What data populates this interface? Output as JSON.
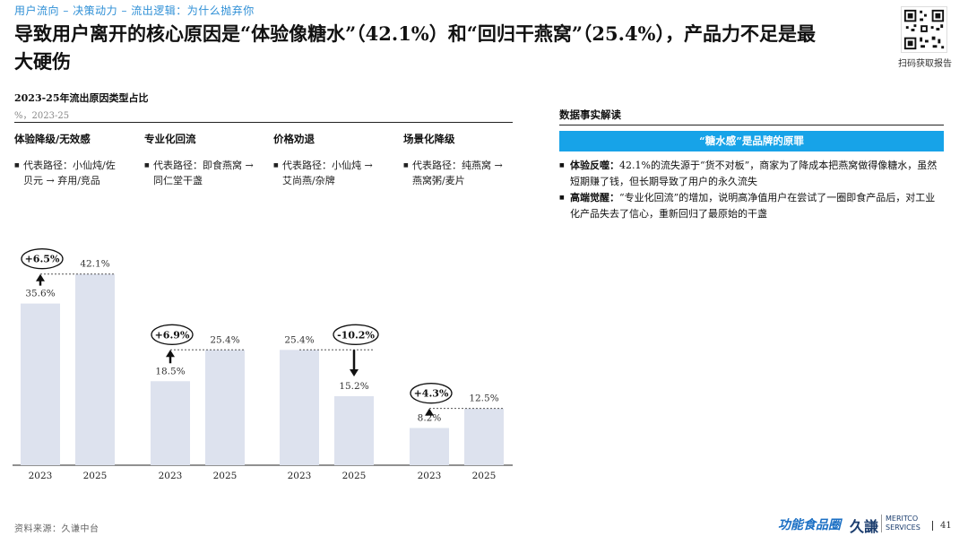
{
  "breadcrumb": "用户流向 – 决策动力 – 流出逻辑：为什么抛弃你",
  "headline": "导致用户离开的核心原因是“体验像糖水”（42.1%）和“回归干燕窝”（25.4%），产品力不足是最大硬伤",
  "qr_caption": "扫码获取报告",
  "chart_data": {
    "type": "bar",
    "title": "2023-25年流出原因类型占比",
    "subtitle": "%，2023-25",
    "groups": [
      {
        "name": "体验降级/无效感",
        "desc": "代表路径：小仙炖/佐贝元 → 弃用/竞品",
        "x": [
          "2023",
          "2025"
        ],
        "values": [
          35.6,
          42.1
        ],
        "change": "+6.5%",
        "direction": "up"
      },
      {
        "name": "专业化回流",
        "desc": "代表路径：即食燕窝 → 同仁堂干盏",
        "x": [
          "2023",
          "2025"
        ],
        "values": [
          18.5,
          25.4
        ],
        "change": "+6.9%",
        "direction": "up"
      },
      {
        "name": "价格劝退",
        "desc": "代表路径：小仙炖 → 艾尚燕/杂牌",
        "x": [
          "2023",
          "2025"
        ],
        "values": [
          25.4,
          15.2
        ],
        "change": "-10.2%",
        "direction": "down"
      },
      {
        "name": "场景化降级",
        "desc": "代表路径：纯燕窝 → 燕窝粥/麦片",
        "x": [
          "2023",
          "2025"
        ],
        "values": [
          8.2,
          12.5
        ],
        "change": "+4.3%",
        "direction": "up"
      }
    ],
    "value_labels": [
      [
        "35.6%",
        "42.1%"
      ],
      [
        "18.5%",
        "25.4%"
      ],
      [
        "25.4%",
        "15.2%"
      ],
      [
        "8.2%",
        "12.5%"
      ]
    ],
    "ylim": [
      0,
      45
    ],
    "bar_color": "#dde2ee"
  },
  "insight_panel": {
    "title": "数据事实解读",
    "banner": "“糖水感”是品牌的原罪",
    "findings": [
      {
        "label": "体验反噬：",
        "text": "42.1%的流失源于“货不对板”，商家为了降成本把燕窝做得像糖水，虽然短期赚了钱，但长期导致了用户的永久流失"
      },
      {
        "label": "高端觉醒：",
        "text": "“专业化回流”的增加，说明高净值用户在尝试了一圈即食产品后，对工业化产品失去了信心，重新回归了最原始的干盏"
      }
    ]
  },
  "source": "资料来源：久谦中台",
  "logos": {
    "brand": "功能食品圈",
    "company_cn": "久謙",
    "company_en_1": "MERITCO",
    "company_en_2": "SERVICES"
  },
  "page_number": "41",
  "colors": {
    "accent": "#17a3e8",
    "breadcrumb": "#2e8fd6"
  }
}
